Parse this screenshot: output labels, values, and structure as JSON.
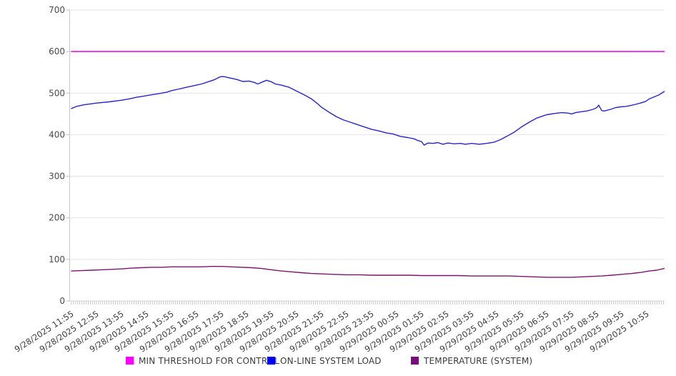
{
  "page": {
    "background": "#ffffff"
  },
  "chart_data": {
    "type": "line",
    "title": "",
    "grid": "horizontal",
    "legend_position": "bottom",
    "x_axis": {
      "label": "",
      "minor_tick_interval_minutes": 5,
      "tick_labels": [
        "9/28/2025 11:55",
        "9/28/2025 12:55",
        "9/28/2025 13:55",
        "9/28/2025 14:55",
        "9/28/2025 15:55",
        "9/28/2025 16:55",
        "9/28/2025 17:55",
        "9/28/2025 18:55",
        "9/28/2025 19:55",
        "9/28/2025 20:55",
        "9/28/2025 21:55",
        "9/28/2025 22:55",
        "9/28/2025 23:55",
        "9/29/2025 00:55",
        "9/29/2025 01:55",
        "9/29/2025 02:55",
        "9/29/2025 03:55",
        "9/29/2025 04:55",
        "9/29/2025 05:55",
        "9/29/2025 06:55",
        "9/29/2025 07:55",
        "9/29/2025 08:55",
        "9/29/2025 09:55",
        "9/29/2025 10:55"
      ]
    },
    "y_axis": {
      "label": "",
      "min": 0,
      "max": 700,
      "tick_step": 100,
      "tick_labels": [
        "0",
        "100",
        "200",
        "300",
        "400",
        "500",
        "600",
        "700"
      ]
    },
    "series": [
      {
        "name": "MIN THRESHOLD FOR CONTROL",
        "line_color": "#e713e7",
        "legend_color": "#ff00ff",
        "points": [
          [
            0,
            600
          ],
          [
            23.7,
            600
          ]
        ]
      },
      {
        "name": "ON-LINE SYSTEM LOAD",
        "line_color": "#2626cd",
        "legend_color": "#0000ee",
        "points": [
          [
            0,
            463
          ],
          [
            0.2,
            468
          ],
          [
            0.5,
            472
          ],
          [
            1,
            476
          ],
          [
            1.5,
            479
          ],
          [
            2,
            483
          ],
          [
            2.3,
            486
          ],
          [
            2.6,
            490
          ],
          [
            2.9,
            493
          ],
          [
            3.2,
            496
          ],
          [
            3.5,
            499
          ],
          [
            3.8,
            502
          ],
          [
            4,
            506
          ],
          [
            4.3,
            510
          ],
          [
            4.6,
            514
          ],
          [
            4.9,
            518
          ],
          [
            5.2,
            522
          ],
          [
            5.45,
            527
          ],
          [
            5.7,
            532
          ],
          [
            5.9,
            538
          ],
          [
            6,
            540
          ],
          [
            6.15,
            539
          ],
          [
            6.3,
            537
          ],
          [
            6.6,
            533
          ],
          [
            6.85,
            528
          ],
          [
            7.1,
            529
          ],
          [
            7.3,
            526
          ],
          [
            7.45,
            522
          ],
          [
            7.6,
            526
          ],
          [
            7.8,
            531
          ],
          [
            8,
            527
          ],
          [
            8.15,
            522
          ],
          [
            8.4,
            519
          ],
          [
            8.7,
            514
          ],
          [
            9,
            505
          ],
          [
            9.3,
            496
          ],
          [
            9.6,
            486
          ],
          [
            9.85,
            474
          ],
          [
            10,
            466
          ],
          [
            10.3,
            454
          ],
          [
            10.6,
            443
          ],
          [
            10.85,
            436
          ],
          [
            11.15,
            430
          ],
          [
            11.4,
            425
          ],
          [
            11.7,
            419
          ],
          [
            12,
            413
          ],
          [
            12.3,
            409
          ],
          [
            12.6,
            404
          ],
          [
            12.85,
            402
          ],
          [
            13.15,
            396
          ],
          [
            13.45,
            393
          ],
          [
            13.7,
            390
          ],
          [
            13.85,
            386
          ],
          [
            14,
            383
          ],
          [
            14.1,
            375
          ],
          [
            14.25,
            380
          ],
          [
            14.45,
            379
          ],
          [
            14.65,
            381
          ],
          [
            14.85,
            377
          ],
          [
            15.05,
            380
          ],
          [
            15.3,
            378
          ],
          [
            15.55,
            379
          ],
          [
            15.75,
            377
          ],
          [
            16,
            379
          ],
          [
            16.3,
            377
          ],
          [
            16.6,
            379
          ],
          [
            16.9,
            382
          ],
          [
            17.15,
            388
          ],
          [
            17.4,
            396
          ],
          [
            17.7,
            406
          ],
          [
            18,
            419
          ],
          [
            18.3,
            430
          ],
          [
            18.6,
            440
          ],
          [
            19,
            448
          ],
          [
            19.3,
            451
          ],
          [
            19.6,
            453
          ],
          [
            19.85,
            452
          ],
          [
            20,
            450
          ],
          [
            20.15,
            453
          ],
          [
            20.35,
            455
          ],
          [
            20.6,
            457
          ],
          [
            20.85,
            461
          ],
          [
            21,
            465
          ],
          [
            21.08,
            471
          ],
          [
            21.2,
            458
          ],
          [
            21.3,
            457
          ],
          [
            21.55,
            461
          ],
          [
            21.75,
            465
          ],
          [
            21.95,
            467
          ],
          [
            22.15,
            468
          ],
          [
            22.35,
            470
          ],
          [
            22.55,
            473
          ],
          [
            22.75,
            476
          ],
          [
            22.95,
            480
          ],
          [
            23.1,
            486
          ],
          [
            23.3,
            491
          ],
          [
            23.5,
            496
          ],
          [
            23.7,
            504
          ]
        ]
      },
      {
        "name": "TEMPERATURE (SYSTEM)",
        "line_color": "#7c1570",
        "legend_color": "#7d0b7d",
        "points": [
          [
            0,
            72
          ],
          [
            0.4,
            73
          ],
          [
            0.8,
            74
          ],
          [
            1.2,
            75
          ],
          [
            1.6,
            76
          ],
          [
            2,
            77
          ],
          [
            2.4,
            79
          ],
          [
            2.8,
            80
          ],
          [
            3.2,
            81
          ],
          [
            3.6,
            81
          ],
          [
            4,
            82
          ],
          [
            4.4,
            82
          ],
          [
            4.8,
            82
          ],
          [
            5.2,
            82
          ],
          [
            5.6,
            83
          ],
          [
            6,
            83
          ],
          [
            6.4,
            82
          ],
          [
            6.8,
            81
          ],
          [
            7.2,
            80
          ],
          [
            7.6,
            78
          ],
          [
            8,
            75
          ],
          [
            8.4,
            72
          ],
          [
            8.8,
            70
          ],
          [
            9.2,
            68
          ],
          [
            9.6,
            66
          ],
          [
            10,
            65
          ],
          [
            10.5,
            64
          ],
          [
            11,
            63
          ],
          [
            11.5,
            63
          ],
          [
            12,
            62
          ],
          [
            12.5,
            62
          ],
          [
            13,
            62
          ],
          [
            13.5,
            62
          ],
          [
            14,
            61
          ],
          [
            14.5,
            61
          ],
          [
            15,
            61
          ],
          [
            15.5,
            61
          ],
          [
            16,
            60
          ],
          [
            16.5,
            60
          ],
          [
            17,
            60
          ],
          [
            17.5,
            60
          ],
          [
            18,
            59
          ],
          [
            18.5,
            58
          ],
          [
            19,
            57
          ],
          [
            19.5,
            57
          ],
          [
            20,
            57
          ],
          [
            20.4,
            58
          ],
          [
            20.8,
            59
          ],
          [
            21.2,
            60
          ],
          [
            21.6,
            62
          ],
          [
            22,
            64
          ],
          [
            22.4,
            66
          ],
          [
            22.8,
            69
          ],
          [
            23.1,
            72
          ],
          [
            23.4,
            74
          ],
          [
            23.7,
            78
          ]
        ]
      }
    ]
  }
}
